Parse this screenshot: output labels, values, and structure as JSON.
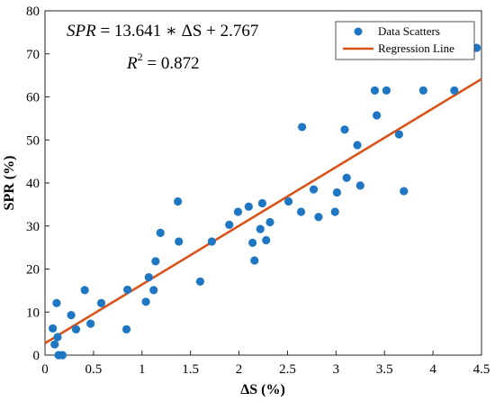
{
  "chart_data": {
    "type": "scatter",
    "xlabel": "ΔS (%)",
    "ylabel": "SPR (%)",
    "xlim": [
      0,
      4.5
    ],
    "ylim": [
      0,
      80
    ],
    "x_ticks": [
      0,
      0.5,
      1,
      1.5,
      2,
      2.5,
      3,
      3.5,
      4,
      4.5
    ],
    "x_tick_labels": [
      "0",
      "0.5",
      "1",
      "1.5",
      "2",
      "2.5",
      "3",
      "3.5",
      "4",
      "4.5"
    ],
    "y_ticks": [
      0,
      10,
      20,
      30,
      40,
      50,
      60,
      70,
      80
    ],
    "y_tick_labels": [
      "0",
      "10",
      "20",
      "30",
      "40",
      "50",
      "60",
      "70",
      "80"
    ],
    "grid": false,
    "legend_position": "top-right",
    "colors": {
      "scatter": "#1f77c4",
      "regression": "#d95319"
    },
    "annotations": {
      "equation_lhs": "SPR",
      "equation_rhs": " = 13.641 ∗ ΔS + 2.767",
      "r2_lhs": "R",
      "r2_sup": "2",
      "r2_rhs": " = 0.872"
    },
    "series": [
      {
        "name": "Data Scatters",
        "kind": "scatter",
        "points": [
          [
            0.08,
            6.2
          ],
          [
            0.1,
            2.5
          ],
          [
            0.12,
            12.1
          ],
          [
            0.13,
            4.2
          ],
          [
            0.14,
            0.0
          ],
          [
            0.18,
            0.0
          ],
          [
            0.27,
            9.3
          ],
          [
            0.32,
            6.0
          ],
          [
            0.41,
            15.1
          ],
          [
            0.47,
            7.3
          ],
          [
            0.58,
            12.1
          ],
          [
            0.84,
            6.0
          ],
          [
            0.85,
            15.2
          ],
          [
            1.04,
            12.4
          ],
          [
            1.07,
            18.1
          ],
          [
            1.12,
            15.1
          ],
          [
            1.14,
            21.8
          ],
          [
            1.19,
            28.4
          ],
          [
            1.37,
            35.7
          ],
          [
            1.38,
            26.4
          ],
          [
            1.6,
            17.1
          ],
          [
            1.72,
            26.4
          ],
          [
            1.9,
            30.3
          ],
          [
            1.99,
            33.3
          ],
          [
            2.1,
            34.5
          ],
          [
            2.14,
            26.1
          ],
          [
            2.16,
            22.0
          ],
          [
            2.22,
            29.3
          ],
          [
            2.24,
            35.3
          ],
          [
            2.28,
            26.7
          ],
          [
            2.32,
            30.9
          ],
          [
            2.51,
            35.7
          ],
          [
            2.64,
            33.3
          ],
          [
            2.65,
            53.0
          ],
          [
            2.77,
            38.5
          ],
          [
            2.82,
            32.1
          ],
          [
            2.99,
            33.3
          ],
          [
            3.01,
            37.8
          ],
          [
            3.09,
            52.4
          ],
          [
            3.11,
            41.2
          ],
          [
            3.22,
            48.8
          ],
          [
            3.25,
            39.4
          ],
          [
            3.4,
            61.5
          ],
          [
            3.42,
            55.7
          ],
          [
            3.52,
            61.5
          ],
          [
            3.65,
            51.3
          ],
          [
            3.7,
            38.1
          ],
          [
            3.9,
            61.5
          ],
          [
            4.22,
            61.5
          ],
          [
            4.45,
            71.4
          ]
        ]
      },
      {
        "name": "Regression Line",
        "kind": "line",
        "slope": 13.641,
        "intercept": 2.767,
        "x_range": [
          0,
          4.5
        ]
      }
    ]
  }
}
